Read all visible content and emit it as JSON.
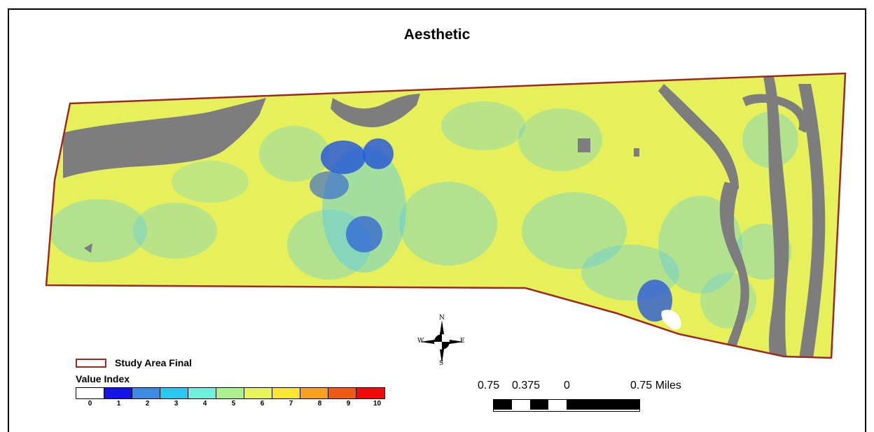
{
  "map": {
    "title": "Aesthetic",
    "region_fill": "#e6f05a",
    "boundary_color": "#9b2a20",
    "water_color": "#7d7d7d",
    "low_value_color": "#50c8f0",
    "hotspot_color": "#2a5ad8"
  },
  "north_arrow": {
    "n": "N",
    "s": "S",
    "e": "E",
    "w": "W"
  },
  "legend": {
    "boundary_label": "Study Area Final",
    "value_title": "Value Index",
    "classes": [
      {
        "label": "0",
        "color": "#ffffff"
      },
      {
        "label": "1",
        "color": "#1414e6"
      },
      {
        "label": "2",
        "color": "#3c8ce6"
      },
      {
        "label": "3",
        "color": "#28c8f0"
      },
      {
        "label": "4",
        "color": "#6ef0dc"
      },
      {
        "label": "5",
        "color": "#aaf08c"
      },
      {
        "label": "6",
        "color": "#e6f55a"
      },
      {
        "label": "7",
        "color": "#fae632"
      },
      {
        "label": "8",
        "color": "#f8a020"
      },
      {
        "label": "9",
        "color": "#f05a14"
      },
      {
        "label": "10",
        "color": "#f00a0a"
      }
    ]
  },
  "scale_bar": {
    "labels": [
      "0.75",
      "0.375",
      "0",
      "0.75 Miles"
    ]
  }
}
